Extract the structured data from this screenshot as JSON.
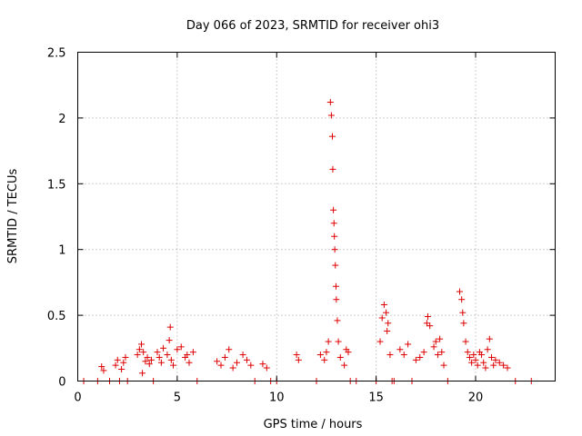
{
  "colors": {
    "series": "#dd0000"
  },
  "chart_data": {
    "type": "scatter",
    "title": "Day 066 of 2023, SRMTID for receiver ohi3",
    "xlabel": "GPS time / hours",
    "ylabel": "SRMTID / TECUs",
    "xlim": [
      0,
      24
    ],
    "ylim": [
      0,
      2.5
    ],
    "xticks": [
      0,
      5,
      10,
      15,
      20
    ],
    "xtick_labels": [
      "0",
      "5",
      "10",
      "15",
      "20"
    ],
    "yticks": [
      0,
      0.5,
      1,
      1.5,
      2,
      2.5
    ],
    "ytick_labels": [
      "0",
      "0.5",
      "1",
      "1.5",
      "2",
      "2.5"
    ],
    "grid": true,
    "marker": "+",
    "series": [
      {
        "name": "SRMTID",
        "x": [
          0.3,
          1.0,
          1.2,
          1.3,
          1.6,
          1.9,
          2.0,
          2.2,
          2.3,
          2.5,
          2.1,
          2.4,
          3.0,
          3.1,
          3.2,
          3.3,
          3.4,
          3.5,
          3.6,
          3.7,
          3.8,
          3.25,
          4.0,
          4.1,
          4.2,
          4.3,
          4.5,
          4.6,
          4.7,
          4.8,
          5.0,
          5.2,
          5.4,
          5.5,
          5.6,
          5.8,
          6.0,
          4.65,
          7.0,
          7.2,
          7.4,
          7.6,
          7.8,
          8.0,
          8.3,
          8.5,
          8.7,
          8.9,
          9.3,
          9.5,
          9.7,
          10.0,
          11.0,
          11.1,
          12.0,
          12.2,
          12.4,
          12.5,
          12.6,
          12.7,
          12.75,
          12.8,
          12.82,
          12.85,
          12.88,
          12.9,
          12.92,
          12.95,
          12.98,
          13.0,
          13.05,
          13.1,
          13.2,
          13.4,
          13.5,
          13.6,
          13.7,
          14.0,
          15.0,
          15.2,
          15.3,
          15.4,
          15.5,
          15.55,
          15.6,
          15.7,
          15.8,
          15.9,
          16.2,
          16.4,
          16.6,
          16.8,
          17.0,
          17.2,
          17.4,
          17.55,
          17.6,
          17.7,
          17.9,
          18.0,
          18.1,
          18.2,
          18.3,
          18.4,
          18.6,
          19.2,
          19.3,
          19.35,
          19.4,
          19.5,
          19.6,
          19.7,
          19.8,
          19.9,
          20.0,
          20.1,
          20.2,
          20.3,
          20.4,
          20.5,
          20.6,
          20.7,
          20.8,
          20.9,
          21.0,
          21.2,
          21.4,
          21.6,
          22.0,
          22.8
        ],
        "y": [
          0.0,
          0.0,
          0.11,
          0.08,
          0.0,
          0.12,
          0.16,
          0.09,
          0.14,
          0.0,
          0.0,
          0.18,
          0.2,
          0.24,
          0.28,
          0.22,
          0.15,
          0.18,
          0.13,
          0.16,
          0.0,
          0.06,
          0.22,
          0.18,
          0.14,
          0.25,
          0.2,
          0.31,
          0.16,
          0.12,
          0.24,
          0.26,
          0.18,
          0.2,
          0.14,
          0.22,
          0.0,
          0.41,
          0.15,
          0.12,
          0.18,
          0.24,
          0.1,
          0.14,
          0.2,
          0.16,
          0.12,
          0.0,
          0.13,
          0.1,
          0.0,
          0.0,
          0.2,
          0.16,
          0.0,
          0.2,
          0.16,
          0.22,
          0.3,
          2.12,
          2.02,
          1.86,
          1.61,
          1.3,
          1.2,
          1.1,
          1.0,
          0.88,
          0.72,
          0.62,
          0.46,
          0.3,
          0.18,
          0.12,
          0.24,
          0.22,
          0.0,
          0.0,
          0.0,
          0.3,
          0.48,
          0.58,
          0.52,
          0.38,
          0.44,
          0.2,
          0.0,
          0.0,
          0.24,
          0.2,
          0.28,
          0.0,
          0.16,
          0.18,
          0.22,
          0.44,
          0.49,
          0.42,
          0.26,
          0.3,
          0.2,
          0.32,
          0.22,
          0.12,
          0.0,
          0.68,
          0.62,
          0.52,
          0.44,
          0.3,
          0.22,
          0.18,
          0.14,
          0.2,
          0.16,
          0.12,
          0.22,
          0.2,
          0.14,
          0.1,
          0.24,
          0.32,
          0.18,
          0.12,
          0.16,
          0.14,
          0.12,
          0.1,
          0.0,
          0.0
        ]
      }
    ]
  }
}
